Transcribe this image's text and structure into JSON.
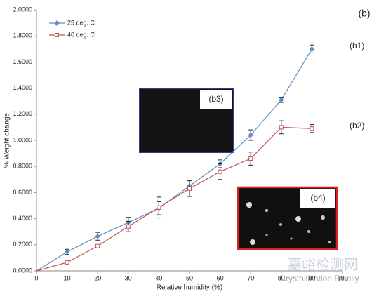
{
  "chart_data": {
    "type": "line",
    "title": "(b)",
    "x_label": "Relative humidity (%)",
    "y_label": "% Weight change",
    "xlim": [
      0,
      100
    ],
    "xticks": [
      0,
      10,
      20,
      30,
      40,
      50,
      60,
      70,
      80,
      90,
      100
    ],
    "ylim": [
      0,
      2
    ],
    "yticks": [
      {
        "value": 0,
        "label": "0.0000"
      },
      {
        "value": 0.2,
        "label": "0.2000"
      },
      {
        "value": 0.4,
        "label": "0.4000"
      },
      {
        "value": 0.6,
        "label": "0.6000"
      },
      {
        "value": 0.8,
        "label": "0.8000"
      },
      {
        "value": 1,
        "label": "1.0000"
      },
      {
        "value": 1.2,
        "label": "1.2000"
      },
      {
        "value": 1.4,
        "label": "1.4000"
      },
      {
        "value": 1.6,
        "label": "1.6000"
      },
      {
        "value": 1.8,
        "label": "1.8000"
      },
      {
        "value": 2,
        "label": "2.0000"
      }
    ],
    "legend": "upper left",
    "series": [
      {
        "name": "25 deg. C",
        "color": "#5b8fc7",
        "marker": "diamond",
        "x": [
          0,
          10,
          20,
          30,
          40,
          50,
          60,
          70,
          80,
          90
        ],
        "values": [
          0,
          0.145,
          0.265,
          0.37,
          0.48,
          0.65,
          0.82,
          1.04,
          1.31,
          1.7
        ],
        "errors": [
          0,
          0.02,
          0.03,
          0.04,
          0.05,
          0.03,
          0.03,
          0.04,
          0.02,
          0.03
        ]
      },
      {
        "name": "40 deg. C",
        "color": "#c9504f",
        "marker": "square",
        "x": [
          0,
          10,
          20,
          30,
          40,
          50,
          60,
          70,
          80,
          90
        ],
        "values": [
          0,
          0.065,
          0.19,
          0.34,
          0.485,
          0.63,
          0.76,
          0.86,
          1.1,
          1.09
        ],
        "errors": [
          0,
          0.01,
          0.01,
          0.04,
          0.08,
          0.06,
          0.06,
          0.05,
          0.05,
          0.03
        ]
      }
    ],
    "annotations": [
      "(b1)",
      "(b2)",
      "(b3)",
      "(b4)"
    ],
    "watermark": [
      "嘉峪检测网",
      "Crystallization Family"
    ]
  }
}
